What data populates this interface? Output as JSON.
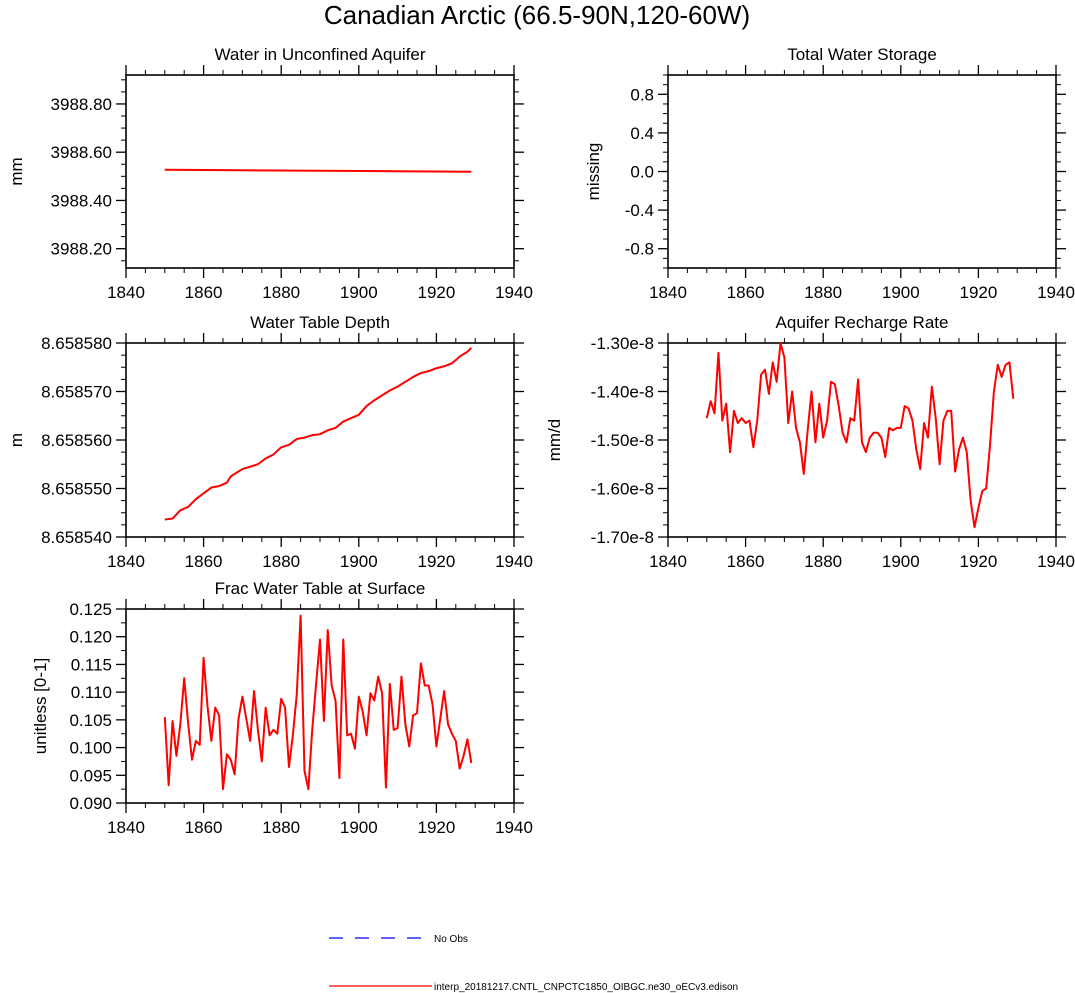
{
  "figure": {
    "title": "Canadian Arctic (66.5-90N,120-60W)",
    "legend": [
      {
        "label": "No Obs",
        "color": "#0000ff",
        "dash": true
      },
      {
        "label": "interp_20181217.CNTL_CNPCTC1850_OIBGC.ne30_oECv3.edison",
        "color": "#ff0000",
        "dash": false
      }
    ]
  },
  "chart_data": [
    {
      "type": "line",
      "title": "Water in Unconfined Aquifer",
      "ylabel": "mm",
      "xlim": [
        1840,
        1940
      ],
      "ylim": [
        3988.12,
        3988.92
      ],
      "xticks": [
        1840,
        1860,
        1880,
        1900,
        1920,
        1940
      ],
      "yticks": [
        3988.2,
        3988.4,
        3988.6,
        3988.8
      ],
      "ytick_labels": [
        "3988.20",
        "3988.40",
        "3988.60",
        "3988.80"
      ],
      "yminor": 0.05,
      "series": [
        {
          "name": "interp_20181217.CNTL_CNPCTC1850_OIBGC.ne30_oECv3.edison",
          "color": "#ff0000",
          "x": [
            1850,
            1870,
            1890,
            1910,
            1929
          ],
          "values": [
            3988.527,
            3988.525,
            3988.523,
            3988.521,
            3988.519
          ]
        }
      ]
    },
    {
      "type": "line",
      "title": "Total Water Storage",
      "ylabel": "missing",
      "xlim": [
        1840,
        1940
      ],
      "ylim": [
        -1.0,
        1.0
      ],
      "xticks": [
        1840,
        1860,
        1880,
        1900,
        1920,
        1940
      ],
      "yticks": [
        -0.8,
        -0.4,
        0.0,
        0.4,
        0.8
      ],
      "ytick_labels": [
        "-0.8",
        "-0.4",
        "0.0",
        "0.4",
        "0.8"
      ],
      "yminor": 0.1,
      "series": []
    },
    {
      "type": "line",
      "title": "Water Table Depth",
      "ylabel": "m",
      "xlim": [
        1840,
        1940
      ],
      "ylim": [
        8.65854,
        8.65858
      ],
      "xticks": [
        1840,
        1860,
        1880,
        1900,
        1920,
        1940
      ],
      "yticks": [
        8.65854,
        8.65855,
        8.65856,
        8.65857,
        8.65858
      ],
      "ytick_labels": [
        "8.658540",
        "8.658550",
        "8.658560",
        "8.658570",
        "8.658580"
      ],
      "yminor": 2.5e-06,
      "series": [
        {
          "name": "interp_20181217.CNTL_CNPCTC1850_OIBGC.ne30_oECv3.edison",
          "color": "#ff0000",
          "x": [
            1850,
            1852,
            1854,
            1856,
            1858,
            1860,
            1862,
            1864,
            1866,
            1867,
            1868,
            1870,
            1872,
            1874,
            1876,
            1878,
            1880,
            1882,
            1884,
            1886,
            1888,
            1890,
            1892,
            1894,
            1896,
            1898,
            1900,
            1902,
            1904,
            1906,
            1908,
            1910,
            1912,
            1914,
            1916,
            1918,
            1920,
            1922,
            1924,
            1926,
            1928,
            1929
          ],
          "values": [
            8.6585436,
            8.6585438,
            8.6585455,
            8.6585462,
            8.6585478,
            8.658549,
            8.6585502,
            8.6585505,
            8.6585512,
            8.6585525,
            8.658553,
            8.658554,
            8.6585545,
            8.658555,
            8.6585562,
            8.658557,
            8.6585585,
            8.658559,
            8.6585602,
            8.6585605,
            8.658561,
            8.6585612,
            8.658562,
            8.6585625,
            8.6585638,
            8.6585645,
            8.6585652,
            8.658567,
            8.6585682,
            8.6585692,
            8.6585702,
            8.658571,
            8.658572,
            8.658573,
            8.6585738,
            8.6585742,
            8.6585748,
            8.6585752,
            8.6585758,
            8.6585772,
            8.6585782,
            8.658579
          ]
        }
      ]
    },
    {
      "type": "line",
      "title": "Aquifer Recharge Rate",
      "ylabel": "mm/d",
      "xlim": [
        1840,
        1940
      ],
      "ylim": [
        -1.7,
        -1.3
      ],
      "xticks": [
        1840,
        1860,
        1880,
        1900,
        1920,
        1940
      ],
      "yticks": [
        -1.7,
        -1.6,
        -1.5,
        -1.4,
        -1.3
      ],
      "ytick_labels": [
        "-1.70e-8",
        "-1.60e-8",
        "-1.50e-8",
        "-1.40e-8",
        "-1.30e-8"
      ],
      "yminor": 0.025,
      "series": [
        {
          "name": "interp_20181217.CNTL_CNPCTC1850_OIBGC.ne30_oECv3.edison",
          "color": "#ff0000",
          "x": [
            1850,
            1851,
            1852,
            1853,
            1854,
            1855,
            1856,
            1857,
            1858,
            1859,
            1860,
            1861,
            1862,
            1863,
            1864,
            1865,
            1866,
            1867,
            1868,
            1869,
            1870,
            1871,
            1872,
            1873,
            1874,
            1875,
            1876,
            1877,
            1878,
            1879,
            1880,
            1881,
            1882,
            1883,
            1884,
            1885,
            1886,
            1887,
            1888,
            1889,
            1890,
            1891,
            1892,
            1893,
            1894,
            1895,
            1896,
            1897,
            1898,
            1899,
            1900,
            1901,
            1902,
            1903,
            1904,
            1905,
            1906,
            1907,
            1908,
            1909,
            1910,
            1911,
            1912,
            1913,
            1914,
            1915,
            1916,
            1917,
            1918,
            1919,
            1920,
            1921,
            1922,
            1923,
            1924,
            1925,
            1926,
            1927,
            1928,
            1929
          ],
          "values": [
            -1.455,
            -1.42,
            -1.445,
            -1.32,
            -1.46,
            -1.425,
            -1.525,
            -1.44,
            -1.465,
            -1.455,
            -1.465,
            -1.46,
            -1.515,
            -1.46,
            -1.365,
            -1.355,
            -1.405,
            -1.34,
            -1.38,
            -1.3,
            -1.33,
            -1.465,
            -1.4,
            -1.475,
            -1.505,
            -1.57,
            -1.48,
            -1.4,
            -1.505,
            -1.425,
            -1.495,
            -1.46,
            -1.38,
            -1.385,
            -1.43,
            -1.485,
            -1.505,
            -1.455,
            -1.46,
            -1.375,
            -1.505,
            -1.525,
            -1.495,
            -1.485,
            -1.485,
            -1.495,
            -1.535,
            -1.475,
            -1.48,
            -1.475,
            -1.475,
            -1.43,
            -1.435,
            -1.46,
            -1.52,
            -1.56,
            -1.465,
            -1.495,
            -1.39,
            -1.455,
            -1.55,
            -1.46,
            -1.44,
            -1.44,
            -1.565,
            -1.52,
            -1.495,
            -1.525,
            -1.625,
            -1.68,
            -1.64,
            -1.605,
            -1.6,
            -1.51,
            -1.4,
            -1.345,
            -1.37,
            -1.345,
            -1.34,
            -1.415
          ]
        }
      ]
    },
    {
      "type": "line",
      "title": "Frac Water Table at Surface",
      "ylabel": "unitless [0-1]",
      "xlim": [
        1840,
        1940
      ],
      "ylim": [
        0.09,
        0.125
      ],
      "xticks": [
        1840,
        1860,
        1880,
        1900,
        1920,
        1940
      ],
      "yticks": [
        0.09,
        0.095,
        0.1,
        0.105,
        0.11,
        0.115,
        0.12,
        0.125
      ],
      "ytick_labels": [
        "0.090",
        "0.095",
        "0.100",
        "0.105",
        "0.110",
        "0.115",
        "0.120",
        "0.125"
      ],
      "yminor": 0.0025,
      "series": [
        {
          "name": "interp_20181217.CNTL_CNPCTC1850_OIBGC.ne30_oECv3.edison",
          "color": "#ff0000",
          "x": [
            1850,
            1851,
            1852,
            1853,
            1854,
            1855,
            1856,
            1857,
            1858,
            1859,
            1860,
            1861,
            1862,
            1863,
            1864,
            1865,
            1866,
            1867,
            1868,
            1869,
            1870,
            1871,
            1872,
            1873,
            1874,
            1875,
            1876,
            1877,
            1878,
            1879,
            1880,
            1881,
            1882,
            1883,
            1884,
            1885,
            1886,
            1887,
            1888,
            1889,
            1890,
            1891,
            1892,
            1893,
            1894,
            1895,
            1896,
            1897,
            1898,
            1899,
            1900,
            1901,
            1902,
            1903,
            1904,
            1905,
            1906,
            1907,
            1908,
            1909,
            1910,
            1911,
            1912,
            1913,
            1914,
            1915,
            1916,
            1917,
            1918,
            1919,
            1920,
            1921,
            1922,
            1923,
            1924,
            1925,
            1926,
            1927,
            1928,
            1929
          ],
          "values": [
            0.1055,
            0.0932,
            0.1048,
            0.0985,
            0.1042,
            0.1125,
            0.1045,
            0.0978,
            0.1012,
            0.1005,
            0.1162,
            0.1075,
            0.1012,
            0.1072,
            0.1058,
            0.0925,
            0.0988,
            0.0978,
            0.0952,
            0.1052,
            0.1092,
            0.1052,
            0.1012,
            0.1102,
            0.1032,
            0.0975,
            0.1072,
            0.1022,
            0.1032,
            0.1025,
            0.1088,
            0.1072,
            0.0965,
            0.1022,
            0.1095,
            0.1238,
            0.0958,
            0.0925,
            0.1032,
            0.1115,
            0.1195,
            0.1048,
            0.1212,
            0.1112,
            0.1085,
            0.0945,
            0.1195,
            0.1022,
            0.1025,
            0.0998,
            0.1092,
            0.1065,
            0.1022,
            0.1098,
            0.1085,
            0.1128,
            0.1098,
            0.0928,
            0.1115,
            0.1032,
            0.1035,
            0.1128,
            0.1042,
            0.1002,
            0.1058,
            0.1062,
            0.1152,
            0.1112,
            0.1112,
            0.1078,
            0.1002,
            0.1052,
            0.1102,
            0.1042,
            0.1025,
            0.1012,
            0.0962,
            0.0985,
            0.1015,
            0.0972
          ]
        }
      ]
    }
  ]
}
